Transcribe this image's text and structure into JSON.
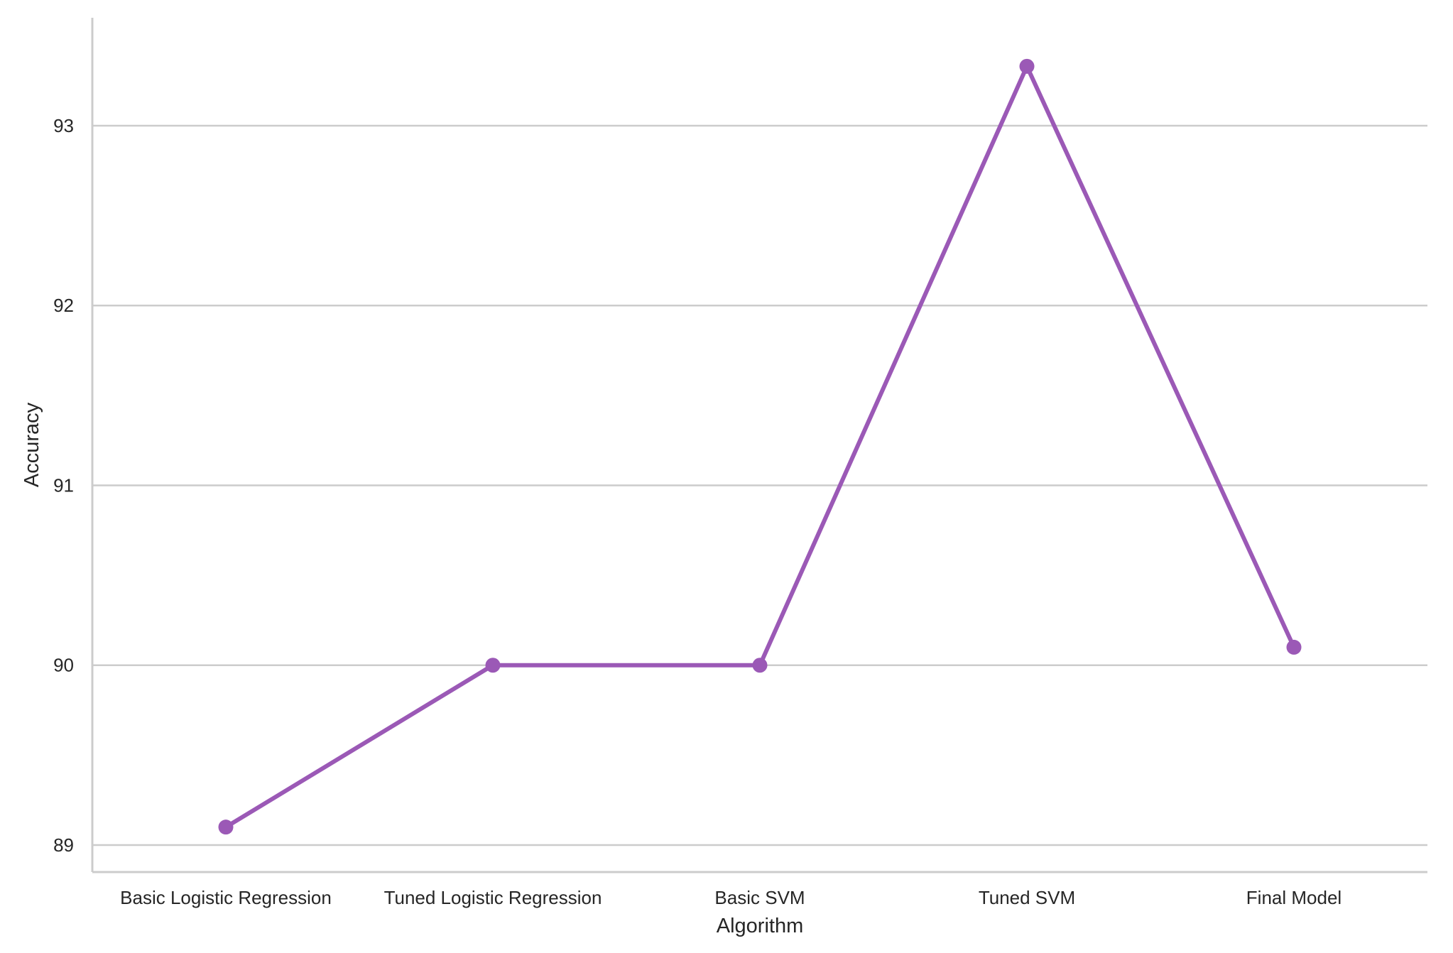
{
  "chart_data": {
    "type": "line",
    "categories": [
      "Basic Logistic Regression",
      "Tuned Logistic Regression",
      "Basic SVM",
      "Tuned SVM",
      "Final Model"
    ],
    "series": [
      {
        "values": [
          89.1,
          90.0,
          90.0,
          93.33,
          90.1
        ],
        "color": "#9b59b6"
      }
    ],
    "xlabel": "Algorithm",
    "ylabel": "Accuracy",
    "ylim": [
      88.85,
      93.6
    ],
    "yticks": [
      89,
      90,
      91,
      92,
      93
    ],
    "grid": {
      "horizontal": true,
      "vertical": false
    },
    "legend": "none"
  }
}
